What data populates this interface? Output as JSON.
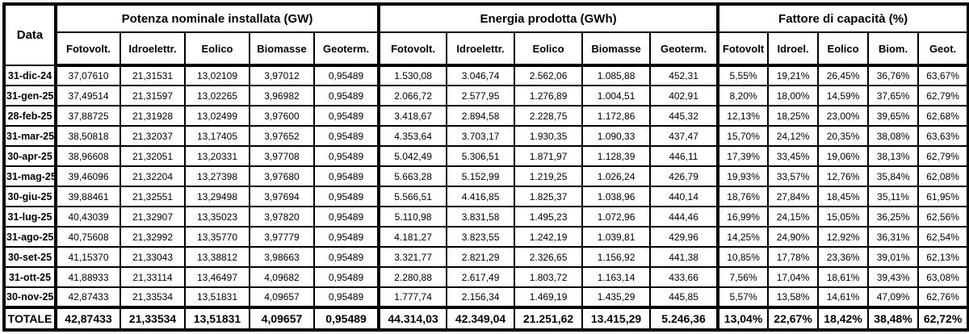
{
  "colors": {
    "background": "#ffffff",
    "border": "#000000",
    "text": "#000000"
  },
  "chart_data": {
    "type": "table",
    "corner_header": "Data",
    "column_groups": [
      {
        "title": "Potenza nominale installata (GW)",
        "columns": [
          "Fotovolt.",
          "Idroelettr.",
          "Eolico",
          "Biomasse",
          "Geoterm."
        ]
      },
      {
        "title": "Energia prodotta (GWh)",
        "columns": [
          "Fotovolt.",
          "Idroelettr.",
          "Eolico",
          "Biomasse",
          "Geoterm."
        ]
      },
      {
        "title": "Fattore di capacità (%)",
        "columns": [
          "Fotovolt",
          "Idroel.",
          "Eolico",
          "Biom.",
          "Geot."
        ]
      }
    ],
    "rows": [
      {
        "date": "31-dic-24",
        "potenza_gw": [
          "37,07610",
          "21,31531",
          "13,02109",
          "3,97012",
          "0,95489"
        ],
        "energia_gwh": [
          "1.530,08",
          "3.046,74",
          "2.562,06",
          "1.085,88",
          "452,31"
        ],
        "fattore_pct": [
          "5,55%",
          "19,21%",
          "26,45%",
          "36,76%",
          "63,67%"
        ]
      },
      {
        "date": "31-gen-25",
        "potenza_gw": [
          "37,49514",
          "21,31597",
          "13,02265",
          "3,96982",
          "0,95489"
        ],
        "energia_gwh": [
          "2.066,72",
          "2.577,95",
          "1.276,89",
          "1.004,51",
          "402,91"
        ],
        "fattore_pct": [
          "8,20%",
          "18,00%",
          "14,59%",
          "37,65%",
          "62,79%"
        ]
      },
      {
        "date": "28-feb-25",
        "potenza_gw": [
          "37,88725",
          "21,31928",
          "13,02499",
          "3,97600",
          "0,95489"
        ],
        "energia_gwh": [
          "3.418,67",
          "2.894,58",
          "2.228,75",
          "1.172,86",
          "445,32"
        ],
        "fattore_pct": [
          "12,13%",
          "18,25%",
          "23,00%",
          "39,65%",
          "62,68%"
        ]
      },
      {
        "date": "31-mar-25",
        "potenza_gw": [
          "38,50818",
          "21,32037",
          "13,17405",
          "3,97652",
          "0,95489"
        ],
        "energia_gwh": [
          "4.353,64",
          "3.703,17",
          "1.930,35",
          "1.090,33",
          "437,47"
        ],
        "fattore_pct": [
          "15,70%",
          "24,12%",
          "20,35%",
          "38,08%",
          "63,63%"
        ]
      },
      {
        "date": "30-apr-25",
        "potenza_gw": [
          "38,96608",
          "21,32051",
          "13,20331",
          "3,97708",
          "0,95489"
        ],
        "energia_gwh": [
          "5.042,49",
          "5.306,51",
          "1.871,97",
          "1.128,39",
          "446,11"
        ],
        "fattore_pct": [
          "17,39%",
          "33,45%",
          "19,06%",
          "38,13%",
          "62,79%"
        ]
      },
      {
        "date": "31-mag-25",
        "potenza_gw": [
          "39,46096",
          "21,32204",
          "13,27398",
          "3,97680",
          "0,95489"
        ],
        "energia_gwh": [
          "5.663,28",
          "5.152,99",
          "1.219,25",
          "1.026,24",
          "426,79"
        ],
        "fattore_pct": [
          "19,93%",
          "33,57%",
          "12,76%",
          "35,84%",
          "62,08%"
        ]
      },
      {
        "date": "30-giu-25",
        "potenza_gw": [
          "39,88461",
          "21,32551",
          "13,29498",
          "3,97694",
          "0,95489"
        ],
        "energia_gwh": [
          "5.566,51",
          "4.416,85",
          "1.825,37",
          "1.038,96",
          "440,14"
        ],
        "fattore_pct": [
          "18,76%",
          "27,84%",
          "18,45%",
          "35,11%",
          "61,95%"
        ]
      },
      {
        "date": "31-lug-25",
        "potenza_gw": [
          "40,43039",
          "21,32907",
          "13,35023",
          "3,97820",
          "0,95489"
        ],
        "energia_gwh": [
          "5.110,98",
          "3.831,58",
          "1.495,23",
          "1.072,96",
          "444,46"
        ],
        "fattore_pct": [
          "16,99%",
          "24,15%",
          "15,05%",
          "36,25%",
          "62,56%"
        ]
      },
      {
        "date": "31-ago-25",
        "potenza_gw": [
          "40,75608",
          "21,32992",
          "13,35770",
          "3,97779",
          "0,95489"
        ],
        "energia_gwh": [
          "4.181,27",
          "3.823,55",
          "1.242,19",
          "1.039,81",
          "429,96"
        ],
        "fattore_pct": [
          "14,25%",
          "24,90%",
          "12,92%",
          "36,31%",
          "62,54%"
        ]
      },
      {
        "date": "30-set-25",
        "potenza_gw": [
          "41,15370",
          "21,33043",
          "13,38812",
          "3,98663",
          "0,95489"
        ],
        "energia_gwh": [
          "3.321,77",
          "2.821,29",
          "2.326,65",
          "1.156,92",
          "441,38"
        ],
        "fattore_pct": [
          "10,85%",
          "17,78%",
          "23,36%",
          "39,01%",
          "62,13%"
        ]
      },
      {
        "date": "31-ott-25",
        "potenza_gw": [
          "41,88933",
          "21,33114",
          "13,46497",
          "4,09682",
          "0,95489"
        ],
        "energia_gwh": [
          "2.280,88",
          "2.617,49",
          "1.803,72",
          "1.163,14",
          "433,66"
        ],
        "fattore_pct": [
          "7,56%",
          "17,04%",
          "18,61%",
          "39,43%",
          "63,08%"
        ]
      },
      {
        "date": "30-nov-25",
        "potenza_gw": [
          "42,87433",
          "21,33534",
          "13,51831",
          "4,09657",
          "0,95489"
        ],
        "energia_gwh": [
          "1.777,74",
          "2.156,34",
          "1.469,19",
          "1.435,29",
          "445,85"
        ],
        "fattore_pct": [
          "5,57%",
          "13,58%",
          "14,61%",
          "47,09%",
          "62,76%"
        ]
      }
    ],
    "total_row": {
      "label": "TOTALE",
      "potenza_gw": [
        "42,87433",
        "21,33534",
        "13,51831",
        "4,09657",
        "0,95489"
      ],
      "energia_gwh": [
        "44.314,03",
        "42.349,04",
        "21.251,62",
        "13.415,29",
        "5.246,36"
      ],
      "fattore_pct": [
        "13,04%",
        "22,67%",
        "18,42%",
        "38,48%",
        "62,72%"
      ]
    }
  }
}
